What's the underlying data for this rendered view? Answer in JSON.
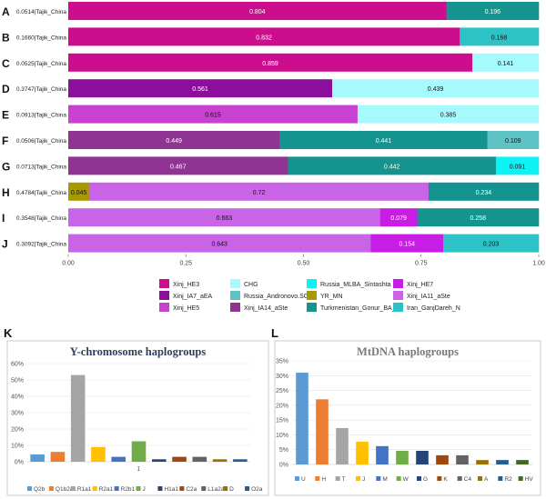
{
  "panelA": {
    "chart_data": {
      "type": "bar",
      "orientation": "horizontal",
      "stacked": true,
      "xlim": [
        0,
        1
      ],
      "xticks": [
        "0.00",
        "0.25",
        "0.50",
        "0.75",
        "1.00"
      ],
      "rows": [
        {
          "letter": "A",
          "label": "0.0514|Tajik_China",
          "segments": [
            {
              "s": "Xinj_HE3",
              "v": 0.804,
              "t": "0.804"
            },
            {
              "s": "Turkmenistan_Gonur_BA_2",
              "v": 0.196,
              "t": "0.196"
            }
          ]
        },
        {
          "letter": "B",
          "label": "0.1660|Tajik_China",
          "segments": [
            {
              "s": "Xinj_HE3",
              "v": 0.832,
              "t": "0.832"
            },
            {
              "s": "Iran_GanjDareh_N",
              "v": 0.168,
              "t": "0.168"
            }
          ]
        },
        {
          "letter": "C",
          "label": "0.0525|Tajik_China",
          "segments": [
            {
              "s": "Xinj_HE3",
              "v": 0.859,
              "t": "0.859"
            },
            {
              "s": "CHG",
              "v": 0.141,
              "t": "0.141"
            }
          ]
        },
        {
          "letter": "D",
          "label": "0.3747|Tajik_China",
          "segments": [
            {
              "s": "Xinj_IA7_aEA",
              "v": 0.561,
              "t": "0.561"
            },
            {
              "s": "CHG",
              "v": 0.439,
              "t": "0.439"
            }
          ]
        },
        {
          "letter": "E",
          "label": "0.0913|Tajik_China",
          "segments": [
            {
              "s": "Xinj_HE5",
              "v": 0.615,
              "t": "0.615"
            },
            {
              "s": "CHG",
              "v": 0.385,
              "t": "0.385"
            }
          ]
        },
        {
          "letter": "F",
          "label": "0.0506|Tajik_China",
          "segments": [
            {
              "s": "Xinj_IA14_aSte",
              "v": 0.449,
              "t": "0.449"
            },
            {
              "s": "Turkmenistan_Gonur_BA_2",
              "v": 0.441,
              "t": "0.441"
            },
            {
              "s": "Russia_Andronovo.SG",
              "v": 0.109,
              "t": "0.109"
            }
          ]
        },
        {
          "letter": "G",
          "label": "0.0713|Tajik_China",
          "segments": [
            {
              "s": "Xinj_IA14_aSte",
              "v": 0.467,
              "t": "0.467"
            },
            {
              "s": "Turkmenistan_Gonur_BA_2",
              "v": 0.442,
              "t": "0.442"
            },
            {
              "s": "Russia_MLBA_Sintashta",
              "v": 0.091,
              "t": "0.091"
            }
          ]
        },
        {
          "letter": "H",
          "label": "0.4784|Tajik_China",
          "segments": [
            {
              "s": "YR_MN",
              "v": 0.045,
              "t": "0.045"
            },
            {
              "s": "Xinj_IA11_aSte",
              "v": 0.72,
              "t": "0.72"
            },
            {
              "s": "Turkmenistan_Gonur_BA_2",
              "v": 0.234,
              "t": "0.234"
            }
          ]
        },
        {
          "letter": "I",
          "label": "0.3548|Tajik_China",
          "segments": [
            {
              "s": "Xinj_IA11_aSte",
              "v": 0.663,
              "t": "0.663"
            },
            {
              "s": "Xinj_HE7",
              "v": 0.079,
              "t": "0.079"
            },
            {
              "s": "Turkmenistan_Gonur_BA_2",
              "v": 0.258,
              "t": "0.258"
            }
          ]
        },
        {
          "letter": "J",
          "label": "0.3092|Tajik_China",
          "segments": [
            {
              "s": "Xinj_IA11_aSte",
              "v": 0.643,
              "t": "0.643"
            },
            {
              "s": "Xinj_HE7",
              "v": 0.154,
              "t": "0.154"
            },
            {
              "s": "Iran_GanjDareh_N",
              "v": 0.203,
              "t": "0.203"
            }
          ]
        }
      ],
      "legend": [
        {
          "name": "Xinj_HE3",
          "color": "#cc0e8e"
        },
        {
          "name": "CHG",
          "color": "#a5fafe"
        },
        {
          "name": "Russia_MLBA_Sintashta",
          "color": "#0ef2f5"
        },
        {
          "name": "Xinj_HE7",
          "color": "#c71de5"
        },
        {
          "name": "Xinj_IA7_aEA",
          "color": "#8b0f9c"
        },
        {
          "name": "Russia_Andronovo.SG",
          "color": "#5fc3c5"
        },
        {
          "name": "YR_MN",
          "color": "#a69a00"
        },
        {
          "name": "Xinj_IA11_aSte",
          "color": "#c964e6"
        },
        {
          "name": "Xinj_HE5",
          "color": "#c841d1"
        },
        {
          "name": "Xinj_IA14_aSte",
          "color": "#903494"
        },
        {
          "name": "Turkmenistan_Gonur_BA_2",
          "color": "#14938f"
        },
        {
          "name": "Iran_GanjDareh_N",
          "color": "#2dc3c6"
        }
      ]
    }
  },
  "panelK": {
    "letter": "K",
    "chart_data": {
      "type": "bar",
      "title": "Y-chromosome haplogroups",
      "ylim": [
        0,
        60
      ],
      "yticks": [
        "0%",
        "10%",
        "20%",
        "30%",
        "40%",
        "50%",
        "60%"
      ],
      "xtick": "1",
      "categories": [
        "Q2b",
        "Q1b2a1",
        "R1a1",
        "R2a1",
        "R2b1",
        "J",
        "H1a1",
        "C2a",
        "L1a2a",
        "D",
        "O2a"
      ],
      "values": [
        4.5,
        6,
        53,
        9,
        3,
        12.5,
        1.5,
        3,
        3,
        1.5,
        1.5
      ],
      "colors": [
        "#5b9bd5",
        "#ed7d31",
        "#a5a5a5",
        "#ffc000",
        "#4472c4",
        "#70ad47",
        "#264478",
        "#9e480e",
        "#636363",
        "#997300",
        "#255e91"
      ]
    }
  },
  "panelL": {
    "letter": "L",
    "chart_data": {
      "type": "bar",
      "title": "MtDNA haplogroups",
      "ylim": [
        0,
        35
      ],
      "yticks": [
        "0%",
        "5%",
        "10%",
        "15%",
        "20%",
        "25%",
        "30%",
        "35%"
      ],
      "categories": [
        "U",
        "H",
        "T",
        "J",
        "M",
        "W",
        "G",
        "K",
        "C4",
        "A",
        "R2",
        "HV"
      ],
      "values": [
        31,
        22,
        12.3,
        7.7,
        6.2,
        4.6,
        4.6,
        3.1,
        3.1,
        1.5,
        1.5,
        1.5
      ],
      "colors": [
        "#5b9bd5",
        "#ed7d31",
        "#a5a5a5",
        "#ffc000",
        "#4472c4",
        "#70ad47",
        "#264478",
        "#9e480e",
        "#636363",
        "#997300",
        "#255e91",
        "#43682b"
      ]
    }
  }
}
